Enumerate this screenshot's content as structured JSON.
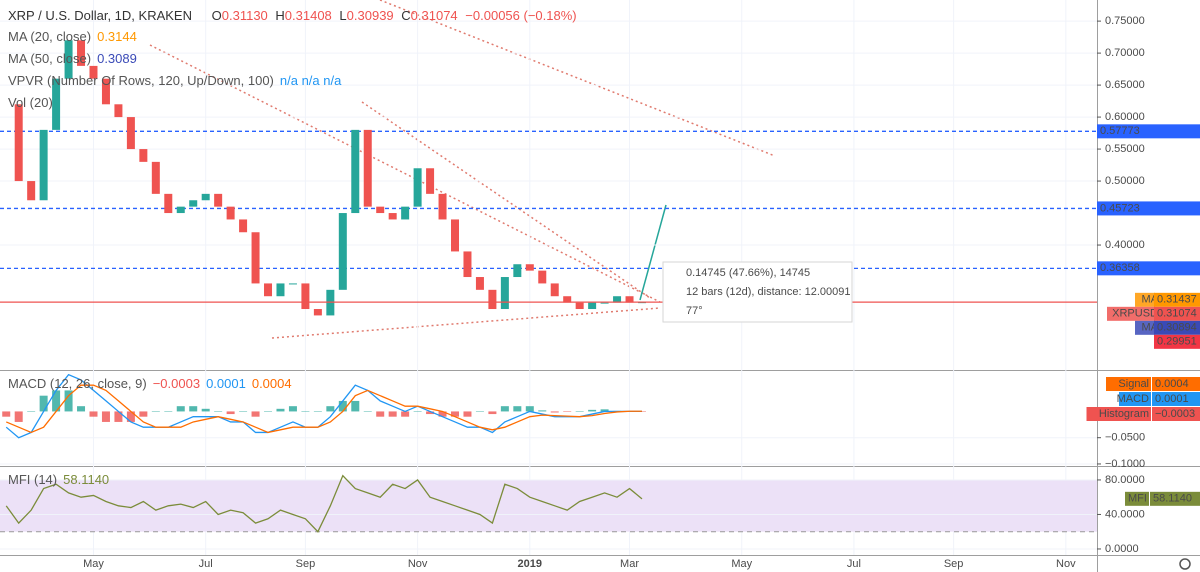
{
  "chart_data": [
    {
      "type": "candlestick",
      "title": "XRP / U.S. Dollar, 1D, KRAKEN",
      "ohlc": [
        {
          "label": "O",
          "value": "0.31130"
        },
        {
          "label": "H",
          "value": "0.31408"
        },
        {
          "label": "L",
          "value": "0.30939"
        },
        {
          "label": "C",
          "value": "0.31074"
        }
      ],
      "change": "−0.00056 (−0.18%)",
      "indicators": [
        {
          "name": "MA (20, close)",
          "value": "0.3144",
          "color": "#ff9800"
        },
        {
          "name": "MA (50, close)",
          "value": "0.3089",
          "color": "#3a4ab7"
        },
        {
          "name": "VPVR (Number Of Rows, 120, Up/Down, 100)",
          "value": "n/a n/a n/a",
          "color": "#2196f3"
        },
        {
          "name": "Vol (20)",
          "color": "#2196f3"
        }
      ],
      "categories": [
        null,
        null,
        null,
        null,
        null,
        null,
        null,
        "May",
        null,
        null,
        null,
        null,
        null,
        null,
        null,
        null,
        "Jul",
        null,
        null,
        null,
        null,
        null,
        null,
        null,
        "Sep",
        null,
        null,
        null,
        null,
        null,
        null,
        null,
        null,
        "Nov",
        null,
        null,
        null,
        null,
        null,
        null,
        null,
        null,
        "2019",
        null,
        null,
        null,
        null,
        null,
        null,
        null,
        "Mar",
        null,
        null,
        null,
        null,
        null,
        null,
        null,
        null,
        "May",
        null,
        null,
        null,
        null,
        null,
        null,
        null,
        null,
        "Jul",
        null,
        null,
        null,
        null,
        null,
        null,
        null,
        "Sep",
        null,
        null,
        null,
        null,
        null,
        null,
        null,
        null,
        "Nov",
        null,
        null
      ],
      "series": [
        {
          "name": "XRPUSD",
          "up_color": "#26a69a",
          "down_color": "#ef5350",
          "values": [
            0.62,
            0.5,
            0.47,
            0.58,
            0.66,
            0.72,
            0.68,
            0.66,
            0.62,
            0.6,
            0.55,
            0.53,
            0.48,
            0.45,
            0.46,
            0.47,
            0.48,
            0.46,
            0.44,
            0.42,
            0.34,
            0.32,
            0.34,
            0.34,
            0.3,
            0.29,
            0.33,
            0.45,
            0.58,
            0.46,
            0.45,
            0.44,
            0.46,
            0.52,
            0.48,
            0.44,
            0.39,
            0.35,
            0.33,
            0.3,
            0.35,
            0.37,
            0.36,
            0.34,
            0.32,
            0.31,
            0.3,
            0.31,
            0.31,
            0.32,
            0.31,
            0.31074,
            null,
            null,
            null,
            null,
            null,
            null,
            null,
            null,
            null,
            null,
            null,
            null,
            null,
            null,
            null,
            null,
            null,
            null,
            null,
            null,
            null,
            null,
            null,
            null,
            null,
            null,
            null,
            null,
            null,
            null,
            null,
            null,
            null,
            null,
            null,
            null
          ]
        }
      ],
      "ylim": [
        0.2,
        0.783
      ],
      "yticks": [
        {
          "value": 0.75,
          "label": "0.75000"
        },
        {
          "value": 0.7,
          "label": "0.70000"
        },
        {
          "value": 0.65,
          "label": "0.65000"
        },
        {
          "value": 0.6,
          "label": "0.60000"
        },
        {
          "value": 0.55,
          "label": "0.55000"
        },
        {
          "value": 0.5,
          "label": "0.50000"
        },
        {
          "value": 0.4,
          "label": "0.40000"
        }
      ],
      "levels": [
        {
          "value": 0.57773,
          "color": "#2962ff"
        },
        {
          "value": 0.45723,
          "color": "#2962ff"
        },
        {
          "value": 0.36358,
          "color": "#2962ff"
        }
      ],
      "price_tags": [
        {
          "name": "MA",
          "value": 0.31437,
          "color": "#ff9800"
        },
        {
          "name": "XRPUSD",
          "value": 0.31074,
          "color": "#ef5350"
        },
        {
          "name": "MA",
          "value": 0.30894,
          "color": "#3a4ab7"
        },
        {
          "value": 0.29951,
          "color": "#f23645"
        }
      ],
      "measure": [
        "0.14745 (47.66%), 14745",
        "12 bars (12d), distance: 12.00091",
        "77°"
      ]
    },
    {
      "type": "macd",
      "title": "MACD (12, 26, close, 9)",
      "ylim": [
        -0.102,
        0.077
      ],
      "yticks": [
        {
          "value": -0.05,
          "label": "−0.0500"
        },
        {
          "value": -0.1,
          "label": "−0.1000"
        }
      ],
      "series": [
        {
          "name": "Histogram",
          "current": "−0.0003",
          "color": "#ef5350",
          "up_color": "#26a69a",
          "down_color": "#ef5350",
          "values": [
            -0.01,
            -0.02,
            0.0,
            0.03,
            0.04,
            0.04,
            0.01,
            -0.01,
            -0.02,
            -0.02,
            -0.02,
            -0.01,
            0.0,
            0.0,
            0.01,
            0.01,
            0.005,
            0.0,
            -0.005,
            0.0,
            -0.01,
            0.0,
            0.005,
            0.01,
            0.0,
            0.0,
            0.01,
            0.02,
            0.02,
            0.0,
            -0.01,
            -0.01,
            -0.01,
            0.0,
            -0.005,
            -0.01,
            -0.01,
            -0.01,
            0.0,
            -0.005,
            0.01,
            0.01,
            0.01,
            0.002,
            -0.002,
            -0.001,
            0.0,
            0.003,
            0.004,
            0.001,
            -0.0002,
            -0.0003,
            null,
            null,
            null,
            null,
            null,
            null,
            null,
            null,
            null,
            null,
            null,
            null,
            null,
            null,
            null,
            null,
            null,
            null,
            null,
            null,
            null,
            null,
            null,
            null,
            null,
            null,
            null,
            null,
            null,
            null,
            null,
            null,
            null,
            null,
            null,
            null
          ]
        },
        {
          "name": "MACD",
          "current": "0.0001",
          "color": "#2196f3",
          "values": [
            -0.03,
            -0.05,
            -0.04,
            0.0,
            0.04,
            0.07,
            0.06,
            0.04,
            0.02,
            0.0,
            -0.02,
            -0.03,
            -0.03,
            -0.03,
            -0.02,
            -0.01,
            -0.01,
            -0.01,
            -0.02,
            -0.02,
            -0.04,
            -0.04,
            -0.03,
            -0.02,
            -0.03,
            -0.03,
            -0.01,
            0.02,
            0.05,
            0.04,
            0.02,
            0.01,
            0.0,
            0.01,
            0.0,
            -0.01,
            -0.02,
            -0.03,
            -0.03,
            -0.04,
            -0.02,
            -0.01,
            0.0,
            -0.005,
            -0.01,
            -0.01,
            -0.01,
            -0.005,
            0.0,
            0.0,
            0.0001,
            0.0001,
            null,
            null,
            null,
            null,
            null,
            null,
            null,
            null,
            null,
            null,
            null,
            null,
            null,
            null,
            null,
            null,
            null,
            null,
            null,
            null,
            null,
            null,
            null,
            null,
            null,
            null,
            null,
            null,
            null,
            null,
            null,
            null,
            null,
            null,
            null,
            null
          ]
        },
        {
          "name": "Signal",
          "current": "0.0004",
          "color": "#ff6d00",
          "values": [
            -0.02,
            -0.03,
            -0.04,
            -0.03,
            0.0,
            0.03,
            0.05,
            0.05,
            0.04,
            0.02,
            0.0,
            -0.02,
            -0.03,
            -0.03,
            -0.03,
            -0.02,
            -0.015,
            -0.01,
            -0.015,
            -0.02,
            -0.03,
            -0.04,
            -0.035,
            -0.03,
            -0.03,
            -0.03,
            -0.02,
            0.0,
            0.03,
            0.04,
            0.03,
            0.02,
            0.01,
            0.01,
            0.005,
            0.0,
            -0.01,
            -0.02,
            -0.03,
            -0.035,
            -0.03,
            -0.02,
            -0.01,
            -0.007,
            -0.008,
            -0.009,
            -0.01,
            -0.008,
            -0.004,
            -0.001,
            0.0003,
            0.0004,
            null,
            null,
            null,
            null,
            null,
            null,
            null,
            null,
            null,
            null,
            null,
            null,
            null,
            null,
            null,
            null,
            null,
            null,
            null,
            null,
            null,
            null,
            null,
            null,
            null,
            null,
            null,
            null,
            null,
            null,
            null,
            null,
            null,
            null,
            null,
            null
          ]
        }
      ]
    },
    {
      "type": "line",
      "title": "MFI (14)",
      "ylim": [
        -7,
        95
      ],
      "yticks": [
        {
          "value": 80,
          "label": "80.0000"
        },
        {
          "value": 40,
          "label": "40.0000"
        },
        {
          "value": 0,
          "label": "0.0000"
        }
      ],
      "band": [
        20,
        80
      ],
      "band_color": "#ece1f7",
      "series": [
        {
          "name": "MFI",
          "current": "58.1140",
          "color": "#7b8c3a",
          "values": [
            50,
            30,
            45,
            70,
            75,
            65,
            60,
            62,
            55,
            50,
            48,
            55,
            45,
            50,
            52,
            48,
            55,
            40,
            45,
            42,
            30,
            35,
            45,
            40,
            35,
            20,
            50,
            85,
            70,
            65,
            60,
            75,
            70,
            80,
            60,
            55,
            50,
            45,
            40,
            30,
            75,
            70,
            60,
            55,
            50,
            45,
            55,
            60,
            65,
            60,
            70,
            58.114,
            null,
            null,
            null,
            null,
            null,
            null,
            null,
            null,
            null,
            null,
            null,
            null,
            null,
            null,
            null,
            null,
            null,
            null,
            null,
            null,
            null,
            null,
            null,
            null,
            null,
            null,
            null,
            null,
            null,
            null,
            null,
            null,
            null,
            null,
            null,
            null
          ]
        }
      ]
    }
  ]
}
